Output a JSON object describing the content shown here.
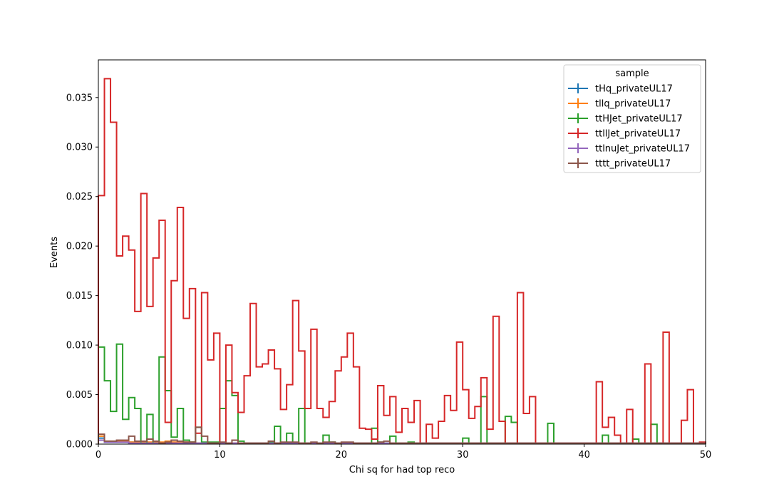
{
  "chart_data": {
    "type": "histogram-step",
    "title": "",
    "xlabel": "Chi sq for had top reco",
    "ylabel": "Events",
    "xlim": [
      0,
      50
    ],
    "ylim": [
      0,
      0.0388
    ],
    "bin_width": 0.5,
    "xticks": [
      0,
      10,
      20,
      30,
      40,
      50
    ],
    "xtick_labels": [
      "0",
      "10",
      "20",
      "30",
      "40",
      "50"
    ],
    "yticks": [
      0,
      0.005,
      0.01,
      0.015,
      0.02,
      0.025,
      0.03,
      0.035
    ],
    "ytick_labels": [
      "0.000",
      "0.005",
      "0.010",
      "0.015",
      "0.020",
      "0.025",
      "0.030",
      "0.035"
    ],
    "grid": false,
    "legend": {
      "title": "sample",
      "placement": "top-right"
    },
    "series": [
      {
        "name": "tHq_privateUL17",
        "color": "#1f77b4",
        "values": [
          0.0006,
          0.0002,
          0.0002,
          0.0002,
          0.0002,
          0.0002,
          0.0002,
          0.0001,
          0.0001,
          0.0001,
          0.0001,
          0.0001,
          0.0001,
          0.0001,
          0.0001,
          0.0001,
          0.0001,
          0.0001,
          0.0001,
          0.0001,
          0.0001,
          0.0001,
          0.0001,
          0.0001,
          0.0001,
          0.0001,
          0.0001,
          0.0001,
          0.0001,
          0.0001,
          0.0001,
          0.0001,
          0.0001,
          0.0001,
          0.0001,
          0.0001,
          0.0001,
          0.0001,
          0.0001,
          0.0001,
          0.0001,
          0.0001,
          0.0001,
          0.0001,
          0.0001,
          0.0001,
          0.0001,
          0.0001,
          0.0001,
          0.0001,
          0.0001,
          0.0001,
          0.0001,
          0.0001,
          0.0001,
          0.0001,
          0.0001,
          0.0001,
          0.0001,
          0.0001,
          0.0001,
          0.0001,
          0.0001,
          0.0001,
          0.0001,
          0.0001,
          0.0001,
          0.0001,
          0.0001,
          0.0001,
          0.0001,
          0.0001,
          0.0001,
          0.0001,
          0.0001,
          0.0001,
          0.0001,
          0.0001,
          0.0001,
          0.0001,
          0.0001,
          0.0001,
          0.0001,
          0.0001,
          0.0001,
          0.0001,
          0.0001,
          0.0001,
          0.0001,
          0.0001,
          0.0001,
          0.0001,
          0.0001,
          0.0001,
          0.0001,
          0.0001,
          0.0001,
          0.0001,
          0.0001,
          0.0001
        ]
      },
      {
        "name": "tllq_privateUL17",
        "color": "#ff7f0e",
        "values": [
          0.0008,
          0.0003,
          0.0003,
          0.0003,
          0.0003,
          0.0002,
          0.0002,
          0.0002,
          0.0002,
          0.0002,
          0.0002,
          0.0003,
          0.0002,
          0.0002,
          0.0002,
          0.0002,
          0.0001,
          0.0001,
          0.0001,
          0.0001,
          0.0001,
          0.0001,
          0.0001,
          0.0001,
          0.0001,
          0.0001,
          0.0001,
          0.0001,
          0.0001,
          0.0001,
          0.0001,
          0.0001,
          0.0001,
          0.0001,
          0.0001,
          0.0001,
          0.0001,
          0.0001,
          0.0001,
          0.0001,
          0.0001,
          0.0001,
          0.0001,
          0.0001,
          0.0001,
          0.0001,
          0.0001,
          0.0001,
          0.0001,
          0.0001,
          0.0001,
          0.0001,
          0.0001,
          0.0001,
          0.0001,
          0.0001,
          0.0001,
          0.0001,
          0.0001,
          0.0001,
          0.0001,
          0.0001,
          0.0001,
          0.0001,
          0.0001,
          0.0001,
          0.0001,
          0.0001,
          0.0001,
          0.0001,
          0.0001,
          0.0001,
          0.0001,
          0.0001,
          0.0001,
          0.0001,
          0.0001,
          0.0001,
          0.0001,
          0.0001,
          0.0001,
          0.0001,
          0.0001,
          0.0001,
          0.0001,
          0.0001,
          0.0001,
          0.0001,
          0.0001,
          0.0001,
          0.0001,
          0.0001,
          0.0001,
          0.0001,
          0.0001,
          0.0001,
          0.0001,
          0.0001,
          0.0001,
          0.0001
        ]
      },
      {
        "name": "ttHJet_privateUL17",
        "color": "#2ca02c",
        "values": [
          0.0098,
          0.0064,
          0.0033,
          0.0101,
          0.0025,
          0.0047,
          0.0036,
          0.0001,
          0.003,
          0.0001,
          0.0088,
          0.0054,
          0.0007,
          0.0036,
          0.0004,
          0.0002,
          0.0017,
          0.0002,
          0.0002,
          0.0002,
          0.0036,
          0.0064,
          0.0049,
          0.0003,
          0.0001,
          0.0001,
          0.0001,
          0.0001,
          0.0002,
          0.0018,
          0.0001,
          0.0011,
          0.0001,
          0.0036,
          0.0001,
          0.0001,
          0.0001,
          0.0009,
          0.0002,
          0.0001,
          0.0001,
          0.0001,
          0.0001,
          0.0001,
          0.0001,
          0.0016,
          0.0002,
          0.0001,
          0.0008,
          0.0001,
          0.0001,
          0.0002,
          0.0001,
          0.0001,
          0.0001,
          0.0001,
          0.0001,
          0.0001,
          0.0001,
          0.0001,
          0.0006,
          0.0001,
          0.0001,
          0.0048,
          0.0001,
          0.0001,
          0.0001,
          0.0028,
          0.0022,
          0.0001,
          0.0001,
          0.0001,
          0.0001,
          0.0001,
          0.0021,
          0.0001,
          0.0001,
          0.0001,
          0.0001,
          0.0001,
          0.0001,
          0.0001,
          0.0001,
          0.0009,
          0.0001,
          0.0001,
          0.0001,
          0.0001,
          0.0005,
          0.0001,
          0.0001,
          0.002,
          0.0001,
          0.0001,
          0.0001,
          0.0001,
          0.0001,
          0.0001,
          0.0001,
          0.0001
        ]
      },
      {
        "name": "ttllJet_privateUL17",
        "color": "#d62728",
        "values": [
          0.0251,
          0.0369,
          0.0325,
          0.019,
          0.021,
          0.0196,
          0.0134,
          0.0253,
          0.0139,
          0.0188,
          0.0226,
          0.0022,
          0.0165,
          0.0239,
          0.0127,
          0.0157,
          0.0011,
          0.0153,
          0.0085,
          0.0112,
          0.0001,
          0.01,
          0.0052,
          0.0032,
          0.0069,
          0.0142,
          0.0078,
          0.0081,
          0.0095,
          0.0076,
          0.0035,
          0.006,
          0.0145,
          0.0094,
          0.0036,
          0.0116,
          0.0036,
          0.0027,
          0.0043,
          0.0074,
          0.0088,
          0.0112,
          0.0078,
          0.0016,
          0.0015,
          0.0005,
          0.0059,
          0.0029,
          0.0048,
          0.0012,
          0.0036,
          0.0022,
          0.0044,
          0.0001,
          0.002,
          0.0006,
          0.0023,
          0.0049,
          0.0034,
          0.0103,
          0.0055,
          0.0026,
          0.0038,
          0.0067,
          0.0015,
          0.0129,
          0.0023,
          0.0001,
          0.0001,
          0.0153,
          0.0031,
          0.0048,
          0.0001,
          0.0001,
          0.0001,
          0.0001,
          0.0001,
          0.0001,
          0.0001,
          0.0001,
          0.0001,
          0.0001,
          0.0063,
          0.0017,
          0.0027,
          0.0009,
          0.0001,
          0.0035,
          0.0001,
          0.0001,
          0.0081,
          0.0001,
          0.0001,
          0.0113,
          0.0001,
          0.0001,
          0.0024,
          0.0055,
          0.0001,
          0.0002
        ]
      },
      {
        "name": "ttlnuJet_privateUL17",
        "color": "#9467bd",
        "values": [
          0.0004,
          0.0002,
          0.0002,
          0.0002,
          0.0002,
          0.0001,
          0.0001,
          0.0001,
          0.0001,
          0.0001,
          0.0001,
          0.0001,
          0.0001,
          0.0001,
          0.0001,
          0.0001,
          0.0001,
          0.0001,
          0.0001,
          0.0001,
          0.0001,
          0.0001,
          0.0001,
          0.0001,
          0.0001,
          0.0001,
          0.0001,
          0.0001,
          0.0001,
          0.0001,
          0.0001,
          0.0001,
          0.0001,
          0.0001,
          0.0001,
          0.0001,
          0.0001,
          0.0001,
          0.0001,
          0.0001,
          0.0001,
          0.0001,
          0.0001,
          0.0001,
          0.0001,
          0.0001,
          0.0001,
          0.0001,
          0.0001,
          0.0001,
          0.0001,
          0.0001,
          0.0001,
          0.0001,
          0.0001,
          0.0001,
          0.0001,
          0.0001,
          0.0001,
          0.0001,
          0.0001,
          0.0001,
          0.0001,
          0.0001,
          0.0001,
          0.0001,
          0.0001,
          0.0001,
          0.0001,
          0.0001,
          0.0001,
          0.0001,
          0.0001,
          0.0001,
          0.0001,
          0.0001,
          0.0001,
          0.0001,
          0.0001,
          0.0001,
          0.0001,
          0.0001,
          0.0001,
          0.0001,
          0.0001,
          0.0001,
          0.0001,
          0.0001,
          0.0001,
          0.0001,
          0.0001,
          0.0001,
          0.0001,
          0.0001,
          0.0001,
          0.0001,
          0.0001,
          0.0001,
          0.0001,
          0.0001
        ]
      },
      {
        "name": "tttt_privateUL17",
        "color": "#8c564b",
        "values": [
          0.001,
          0.0003,
          0.0003,
          0.0004,
          0.0004,
          0.0008,
          0.0003,
          0.0003,
          0.0005,
          0.0003,
          0.0001,
          0.0002,
          0.0004,
          0.0003,
          0.0002,
          0.0002,
          0.0017,
          0.0008,
          0.0001,
          0.0001,
          0.0002,
          0.0001,
          0.0004,
          0.0001,
          0.0001,
          0.0001,
          0.0001,
          0.0001,
          0.0003,
          0.0001,
          0.0002,
          0.0002,
          0.0002,
          0.0001,
          0.0001,
          0.0002,
          0.0001,
          0.0002,
          0.0002,
          0.0001,
          0.0002,
          0.0002,
          0.0001,
          0.0001,
          0.0001,
          0.0001,
          0.0002,
          0.0003,
          0.0001,
          0.0001,
          0.0001,
          0.0001,
          0.0001,
          0.0001,
          0.0001,
          0.0001,
          0.0001,
          0.0001,
          0.0001,
          0.0001,
          0.0001,
          0.0001,
          0.0001,
          0.0001,
          0.0001,
          0.0001,
          0.0001,
          0.0001,
          0.0001,
          0.0001,
          0.0001,
          0.0001,
          0.0001,
          0.0001,
          0.0001,
          0.0001,
          0.0001,
          0.0001,
          0.0001,
          0.0001,
          0.0001,
          0.0001,
          0.0001,
          0.0001,
          0.0001,
          0.0001,
          0.0001,
          0.0001,
          0.0001,
          0.0001,
          0.0001,
          0.0001,
          0.0001,
          0.0001,
          0.0001,
          0.0001,
          0.0001,
          0.0001,
          0.0001,
          0.0001
        ]
      }
    ]
  }
}
